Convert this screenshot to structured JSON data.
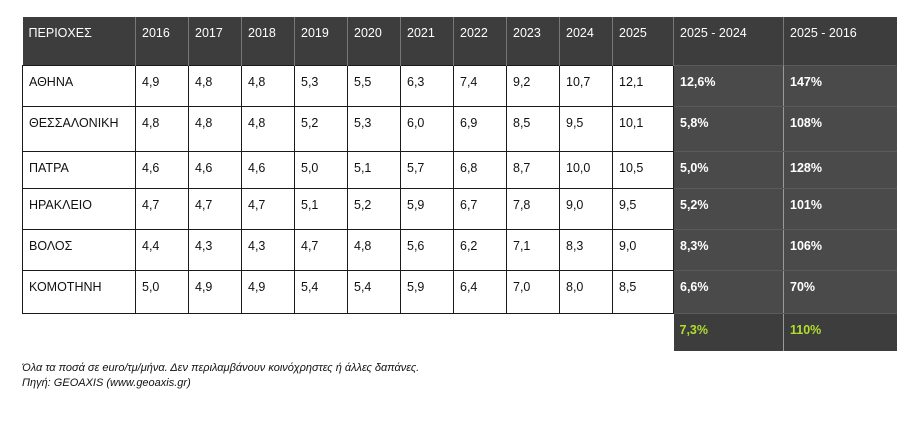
{
  "table": {
    "headers": [
      "ΠΕΡΙΟΧΕΣ",
      "2016",
      "2017",
      "2018",
      "2019",
      "2020",
      "2021",
      "2022",
      "2023",
      "2024",
      "2025",
      "2025 - 2024",
      "2025 - 2016"
    ],
    "rows": [
      {
        "region": "ΑΘΗΝΑ",
        "values": [
          "4,9",
          "4,8",
          "4,8",
          "5,3",
          "5,5",
          "6,3",
          "7,4",
          "9,2",
          "10,7",
          "12,1"
        ],
        "change_1y": "12,6%",
        "change_10y": "147%"
      },
      {
        "region": "ΘΕΣΣΑΛΟΝΙΚΗ",
        "values": [
          "4,8",
          "4,8",
          "4,8",
          "5,2",
          "5,3",
          "6,0",
          "6,9",
          "8,5",
          "9,5",
          "10,1"
        ],
        "change_1y": "5,8%",
        "change_10y": "108%"
      },
      {
        "region": "ΠΑΤΡΑ",
        "values": [
          "4,6",
          "4,6",
          "4,6",
          "5,0",
          "5,1",
          "5,7",
          "6,8",
          "8,7",
          "10,0",
          "10,5"
        ],
        "change_1y": "5,0%",
        "change_10y": "128%"
      },
      {
        "region": "ΗΡΑΚΛΕΙΟ",
        "values": [
          "4,7",
          "4,7",
          "4,7",
          "5,1",
          "5,2",
          "5,9",
          "6,7",
          "7,8",
          "9,0",
          "9,5"
        ],
        "change_1y": "5,2%",
        "change_10y": "101%"
      },
      {
        "region": "ΒΟΛΟΣ",
        "values": [
          "4,4",
          "4,3",
          "4,3",
          "4,7",
          "4,8",
          "5,6",
          "6,2",
          "7,1",
          "8,3",
          "9,0"
        ],
        "change_1y": "8,3%",
        "change_10y": "106%"
      },
      {
        "region": "ΚΟΜΟΤΗΝΗ",
        "values": [
          "5,0",
          "4,9",
          "4,9",
          "5,4",
          "5,4",
          "5,9",
          "6,4",
          "7,0",
          "8,0",
          "8,5"
        ],
        "change_1y": "6,6%",
        "change_10y": "70%"
      }
    ],
    "totals": {
      "change_1y": "7,3%",
      "change_10y": "110%"
    }
  },
  "notes": {
    "line1": "Όλα τα ποσά σε euro/τμ/μήνα. Δεν περιλαμβάνουν κοινόχρηστες ή άλλες δαπάνες.",
    "line2": "Πηγή: GEOAXIS (www.geoaxis.gr)"
  },
  "colors": {
    "header_bg": "#3d3d3d",
    "highlight_bg": "#4a4a4a",
    "total_text": "#aee02a"
  }
}
